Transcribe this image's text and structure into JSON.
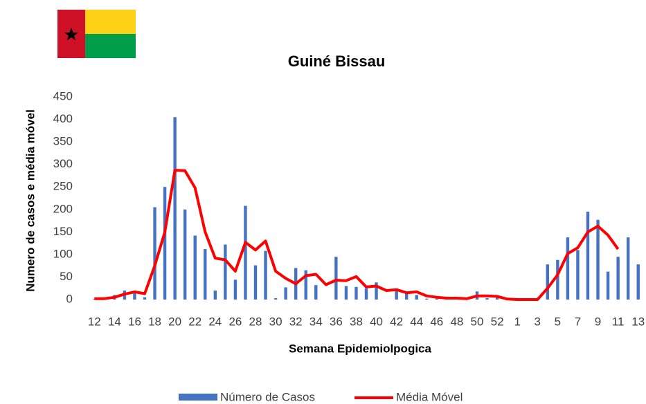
{
  "chart_data": {
    "type": "bar_line",
    "title": "Guiné Bissau",
    "x_label": "Semana Epidemiolpogica",
    "y_label": "Numero de casos e média móvel",
    "categories": [
      "12",
      null,
      "14",
      null,
      "16",
      null,
      "18",
      null,
      "20",
      null,
      "22",
      null,
      "24",
      null,
      "26",
      null,
      "28",
      null,
      "30",
      null,
      "32",
      null,
      "34",
      null,
      "36",
      null,
      "38",
      null,
      "40",
      null,
      "42",
      null,
      "44",
      null,
      "46",
      null,
      "48",
      null,
      "50",
      null,
      "52",
      null,
      "1",
      null,
      "3",
      null,
      "5",
      null,
      "7",
      null,
      "9",
      null,
      "11",
      null,
      "13"
    ],
    "series": [
      {
        "name": "Número de Casos",
        "color": "#4472c4",
        "values": [
          1,
          3,
          10,
          20,
          15,
          5,
          205,
          250,
          405,
          200,
          142,
          112,
          20,
          122,
          44,
          208,
          76,
          108,
          3,
          27,
          70,
          65,
          32,
          0,
          95,
          30,
          28,
          25,
          38,
          0,
          20,
          15,
          10,
          2,
          2,
          2,
          2,
          2,
          18,
          3,
          5,
          0,
          0,
          0,
          0,
          78,
          88,
          138,
          110,
          195,
          177,
          62,
          95,
          138,
          78
        ]
      },
      {
        "name": "Média Móvel",
        "color": "#ff0000",
        "values": [
          2,
          2,
          5,
          12,
          17,
          13,
          75,
          150,
          287,
          286,
          248,
          150,
          92,
          88,
          63,
          127,
          110,
          130,
          63,
          47,
          35,
          53,
          56,
          33,
          43,
          42,
          51,
          28,
          30,
          20,
          22,
          15,
          17,
          8,
          5,
          3,
          3,
          2,
          8,
          8,
          7,
          1,
          0,
          0,
          0,
          25,
          55,
          102,
          115,
          150,
          163,
          143,
          112,
          null,
          null
        ]
      }
    ],
    "ylim": [
      0,
      450
    ],
    "yticks": [
      0,
      50,
      100,
      150,
      200,
      250,
      300,
      350,
      400,
      450
    ],
    "grid": false,
    "legend": "bottom"
  }
}
